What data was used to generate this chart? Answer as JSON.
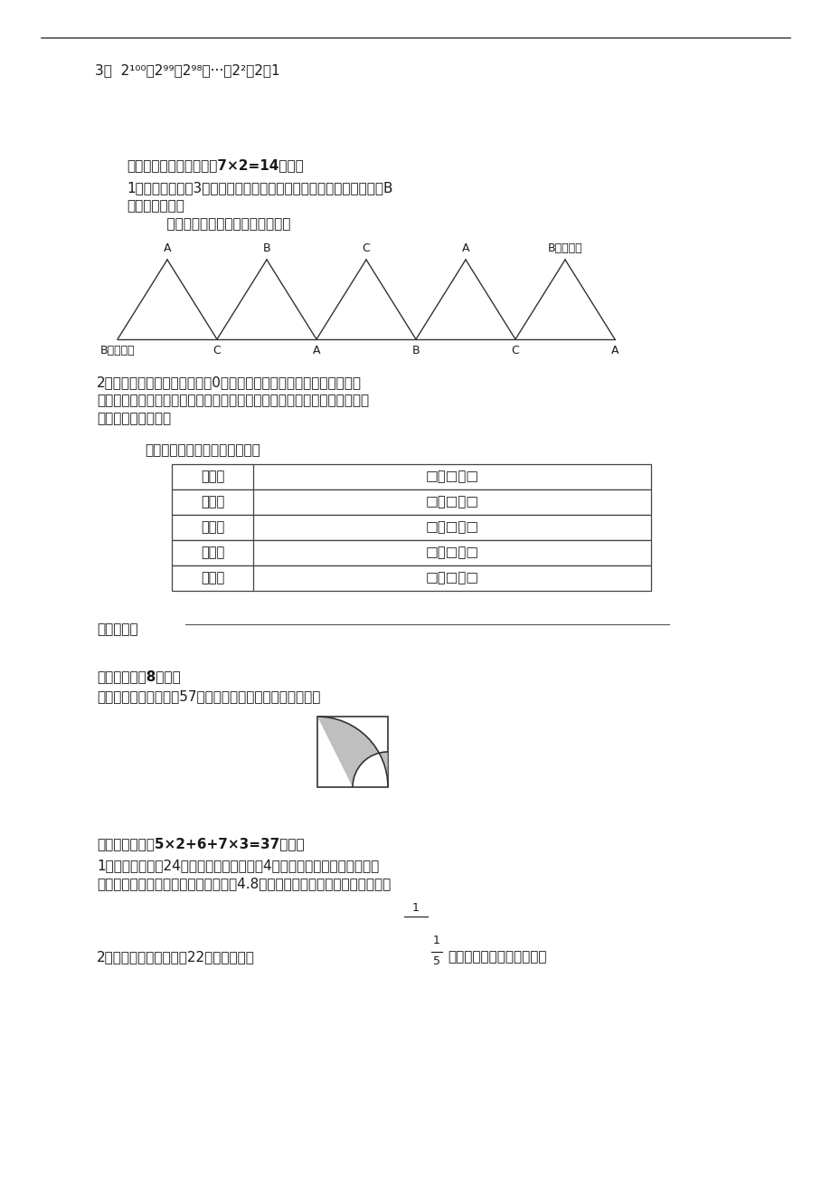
{
  "bg_color": "#ffffff",
  "line_color": "#555555",
  "text_color": "#1a1a1a",
  "section3": "3、  2¹⁰⁰－2⁹⁹－2⁹⁸－···－2²－2－1",
  "s4_title": "四、动手操作，找规律（7×2=14分）。",
  "s4_q1_1": "1、有一个边长为3厘米的等边三角形，现将它按下图所示滚动，请问B",
  "s4_q1_2": "点从开始到结束",
  "s4_q1_3": "    经过的路线的总长度是多少厘米？",
  "apex_labels": [
    "A",
    "B",
    "C",
    "A",
    "B（结束）"
  ],
  "bottom_labels": [
    "B（开始）",
    "C",
    "A",
    "B",
    "C",
    "A"
  ],
  "s4_q2_1": "2、任意选择两个不同的数字（0除外），用它们分别组成两个两位数，",
  "s4_q2_2": "用其中的大数减去小数。再重新选择两个不相同的数字，重复上述过程，象",
  "s4_q2_3": "这样连续操作五次。",
  "s4_q2_4": "在操作过程中，你发现了什么？",
  "table_rows": [
    "第一次",
    "第二次",
    "第三次",
    "第四次",
    "第五次"
  ],
  "table_formula": "□－□＝□",
  "wofaxianle": "我发现了：",
  "s5_title": "五、图形题（8分）。",
  "s5_text": "图中阴影部分的面积是57平方厘米，求这个正方形的面积。",
  "s6_title": "六、综合应用（5×2+6+7×3=37分）。",
  "s6_q1_1": "1、山脚到山顶朗24千米。一个人以每小时4千米的速度上山，他立即从原",
  "s6_q1_2": "路下山，已知上山和下山的平均速度是4.8千米。这人下山每小时行多少千米？",
  "s6_q2": "2、甲、乙两根绳子共长22米，甲绳截去",
  "s6_q2b": "后，乙绳和甲绳的长度比是",
  "page_num": "1"
}
